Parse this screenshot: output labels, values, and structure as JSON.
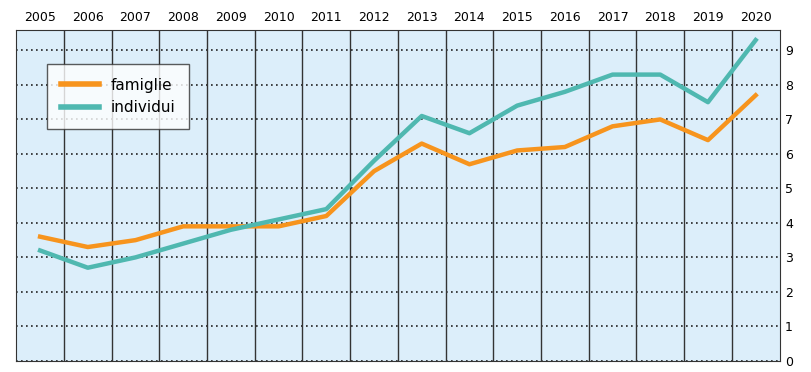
{
  "chart_data": {
    "type": "line",
    "categories": [
      "2005",
      "2006",
      "2007",
      "2008",
      "2009",
      "2010",
      "2011",
      "2012",
      "2013",
      "2014",
      "2015",
      "2016",
      "2017",
      "2018",
      "2019",
      "2020"
    ],
    "series": [
      {
        "name": "famiglie",
        "color": "#f7941d",
        "values": [
          3.6,
          3.3,
          3.5,
          3.9,
          3.9,
          3.9,
          4.2,
          5.5,
          6.3,
          5.7,
          6.1,
          6.2,
          6.8,
          7.0,
          6.4,
          7.7
        ]
      },
      {
        "name": "individui",
        "color": "#4fb8b0",
        "values": [
          3.2,
          2.7,
          3.0,
          3.4,
          3.8,
          4.1,
          4.4,
          5.8,
          7.1,
          6.6,
          7.4,
          7.8,
          8.3,
          8.3,
          7.5,
          9.3
        ]
      }
    ],
    "ylim": [
      0,
      9.6
    ],
    "yticks": [
      0,
      1,
      2,
      3,
      4,
      5,
      6,
      7,
      8,
      9
    ],
    "grid": true,
    "legend": "upper left"
  }
}
